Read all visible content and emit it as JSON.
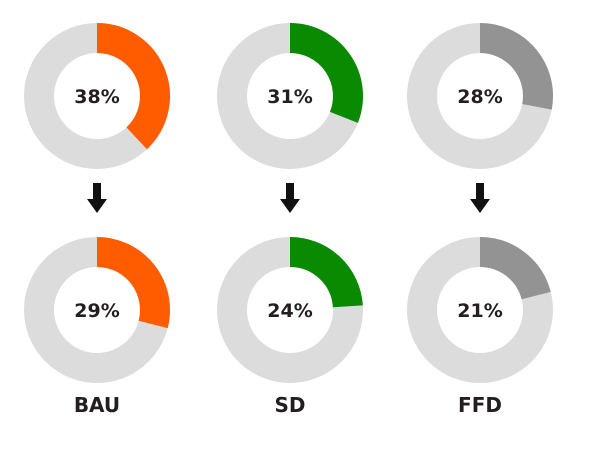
{
  "chart_data": {
    "type": "donut",
    "colors": {
      "track": "#dcdcdc",
      "arrow": "#111111",
      "text": "#231f20"
    },
    "scenarios": [
      {
        "label": "BAU",
        "color": "#ff5c00",
        "values": [
          38,
          29
        ],
        "display": [
          "38%",
          "29%"
        ]
      },
      {
        "label": "SD",
        "color": "#098a00",
        "values": [
          31,
          24
        ],
        "display": [
          "31%",
          "24%"
        ]
      },
      {
        "label": "FFD",
        "color": "#939393",
        "values": [
          28,
          21
        ],
        "display": [
          "28%",
          "21%"
        ]
      }
    ]
  }
}
